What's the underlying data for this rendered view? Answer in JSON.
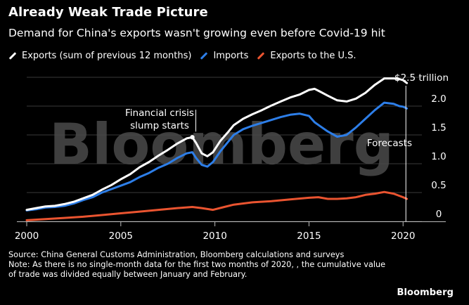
{
  "header": {
    "title": "Already Weak Trade Picture",
    "subtitle": "Demand for China's exports wasn't growing even before Covid-19 hit"
  },
  "legend": [
    {
      "label": "Exports (sum of previous 12 months)",
      "color": "#ffffff"
    },
    {
      "label": "Imports",
      "color": "#2d7ee8"
    },
    {
      "label": "Exports to the U.S.",
      "color": "#ea5430"
    }
  ],
  "watermark": "Bloomberg",
  "annotations": {
    "crisis_line1": "Financial crisis",
    "crisis_line2": "slump starts",
    "forecasts": "Forecasts",
    "top_label": "$2.5 trillion"
  },
  "notes": {
    "source": "Source: China General Customs Administration, Bloomberg calculations and surveys",
    "note": "Note: As there is no single-month data for the first two months of 2020, , the cumulative value of trade was divided equally between January and February."
  },
  "brand": "Bloomberg",
  "chart_data": {
    "type": "line",
    "title": "Already Weak Trade Picture",
    "subtitle": "Demand for China's exports wasn't growing even before Covid-19 hit",
    "x_ticks": [
      2000,
      2005,
      2010,
      2015,
      2020
    ],
    "y_ticks": [
      0,
      0.5,
      1.0,
      1.5,
      2.0
    ],
    "y_tick_labels": [
      "0",
      "0.5",
      "1.0",
      "1.5",
      "2.0"
    ],
    "xlim": [
      2000,
      2021
    ],
    "ylim": [
      0,
      2.5
    ],
    "grid": "horizontal",
    "legend_position": "top-left",
    "series": [
      {
        "name": "Exports (sum of previous 12 months)",
        "color": "#ffffff",
        "x": [
          2000,
          2000.5,
          2001,
          2001.5,
          2002,
          2002.5,
          2003,
          2003.5,
          2004,
          2004.5,
          2005,
          2005.5,
          2006,
          2006.5,
          2007,
          2007.5,
          2008,
          2008.5,
          2008.8,
          2009.0,
          2009.3,
          2009.6,
          2009.9,
          2010.3,
          2010.7,
          2011,
          2011.5,
          2012,
          2012.5,
          2013,
          2013.5,
          2014,
          2014.5,
          2015,
          2015.3,
          2015.6,
          2016,
          2016.5,
          2017,
          2017.5,
          2018,
          2018.5,
          2019,
          2019.5,
          2019.8,
          2020,
          2020.2
        ],
        "y": [
          0.2,
          0.23,
          0.26,
          0.27,
          0.3,
          0.34,
          0.4,
          0.46,
          0.55,
          0.63,
          0.73,
          0.82,
          0.94,
          1.03,
          1.14,
          1.24,
          1.35,
          1.44,
          1.46,
          1.36,
          1.18,
          1.13,
          1.2,
          1.4,
          1.55,
          1.67,
          1.78,
          1.86,
          1.93,
          2.01,
          2.08,
          2.15,
          2.2,
          2.28,
          2.3,
          2.25,
          2.18,
          2.1,
          2.08,
          2.13,
          2.23,
          2.37,
          2.48,
          2.48,
          2.47,
          2.45,
          2.4
        ]
      },
      {
        "name": "Imports",
        "color": "#2d7ee8",
        "x": [
          2000,
          2000.5,
          2001,
          2001.5,
          2002,
          2002.5,
          2003,
          2003.5,
          2004,
          2004.5,
          2005,
          2005.5,
          2006,
          2006.5,
          2007,
          2007.5,
          2008,
          2008.5,
          2008.8,
          2009.0,
          2009.3,
          2009.6,
          2009.9,
          2010.3,
          2010.7,
          2011,
          2011.5,
          2012,
          2012.5,
          2013,
          2013.5,
          2014,
          2014.5,
          2015,
          2015.3,
          2015.6,
          2016,
          2016.5,
          2017,
          2017.5,
          2018,
          2018.5,
          2019,
          2019.5,
          2019.8,
          2020,
          2020.2
        ],
        "y": [
          0.19,
          0.21,
          0.24,
          0.25,
          0.27,
          0.31,
          0.37,
          0.42,
          0.5,
          0.56,
          0.62,
          0.68,
          0.77,
          0.84,
          0.93,
          1.0,
          1.1,
          1.18,
          1.2,
          1.1,
          0.98,
          0.95,
          1.03,
          1.22,
          1.38,
          1.5,
          1.6,
          1.66,
          1.71,
          1.76,
          1.81,
          1.85,
          1.87,
          1.83,
          1.72,
          1.65,
          1.56,
          1.47,
          1.5,
          1.63,
          1.78,
          1.93,
          2.06,
          2.04,
          2.0,
          1.99,
          1.96
        ]
      },
      {
        "name": "Exports to the U.S.",
        "color": "#ea5430",
        "x": [
          2000,
          2001,
          2002,
          2003,
          2004,
          2005,
          2006,
          2007,
          2008,
          2008.8,
          2009.3,
          2009.9,
          2010.5,
          2011,
          2012,
          2013,
          2014,
          2015,
          2015.5,
          2016,
          2016.5,
          2017,
          2017.5,
          2018,
          2018.5,
          2019,
          2019.5,
          2020,
          2020.2
        ],
        "y": [
          0.02,
          0.04,
          0.06,
          0.08,
          0.11,
          0.14,
          0.17,
          0.2,
          0.23,
          0.25,
          0.23,
          0.2,
          0.25,
          0.29,
          0.33,
          0.35,
          0.38,
          0.41,
          0.42,
          0.39,
          0.39,
          0.4,
          0.42,
          0.46,
          0.48,
          0.51,
          0.48,
          0.42,
          0.39
        ]
      }
    ]
  }
}
